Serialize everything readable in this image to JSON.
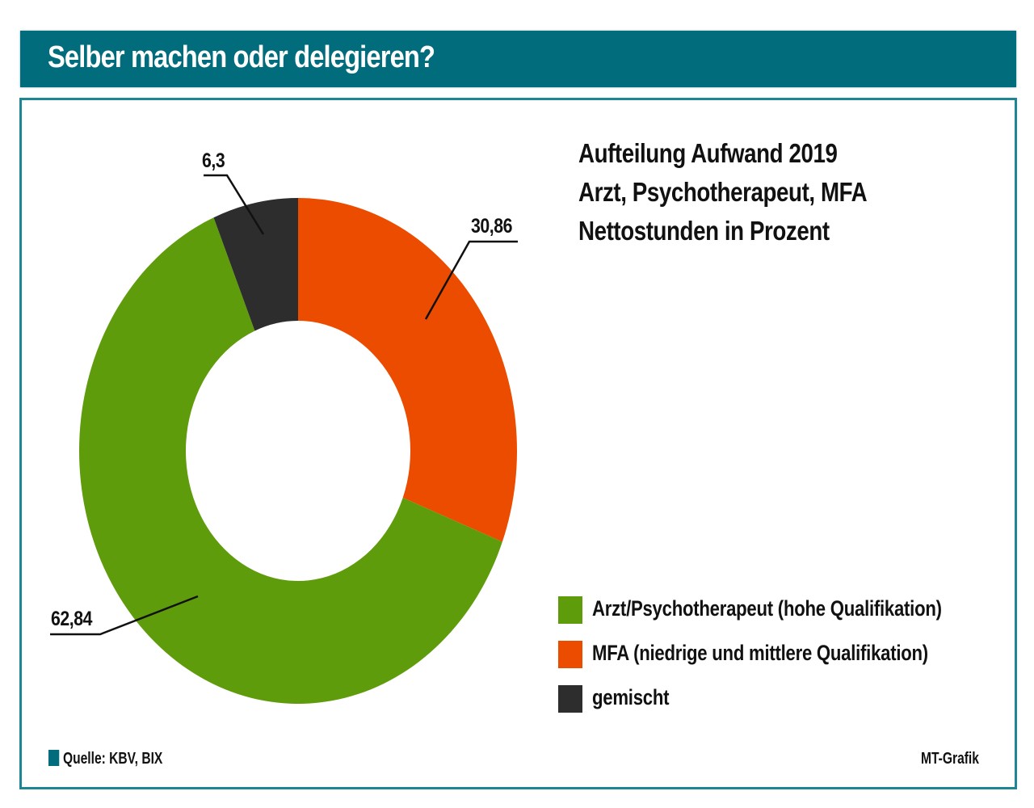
{
  "header": {
    "title": "Selber machen oder delegieren?"
  },
  "colors": {
    "header": "#006c7c",
    "frame": "#1d8695",
    "arzt": "#5f9c0c",
    "mfa": "#ec4c00",
    "gemischt": "#2d2d2d"
  },
  "chart_data": {
    "type": "pie",
    "variant": "donut",
    "title": [
      "Aufteilung Aufwand 2019",
      "Arzt, Psychotherapeut, MFA",
      "Nettostunden in Prozent"
    ],
    "start_angle": "12 o'clock",
    "direction": "clockwise",
    "series": [
      {
        "name": "MFA (niedrige und mittlere Qualifikation)",
        "value": 30.86,
        "label": "30,86",
        "color": "#ec4c00"
      },
      {
        "name": "Arzt/Psychotherapeut (hohe Qualifikation)",
        "value": 62.84,
        "label": "62,84",
        "color": "#5f9c0c"
      },
      {
        "name": "gemischt",
        "value": 6.3,
        "label": "6,3",
        "color": "#2d2d2d"
      }
    ],
    "legend": [
      {
        "label": "Arzt/Psychotherapeut (hohe Qualifikation)",
        "color": "#5f9c0c"
      },
      {
        "label": "MFA (niedrige und mittlere Qualifikation)",
        "color": "#ec4c00"
      },
      {
        "label": "gemischt",
        "color": "#2d2d2d"
      }
    ],
    "legend_position": "bottom-right",
    "unit": "Prozent"
  },
  "footer": {
    "source": "Quelle: KBV, BIX",
    "credit": "MT-Grafik"
  }
}
